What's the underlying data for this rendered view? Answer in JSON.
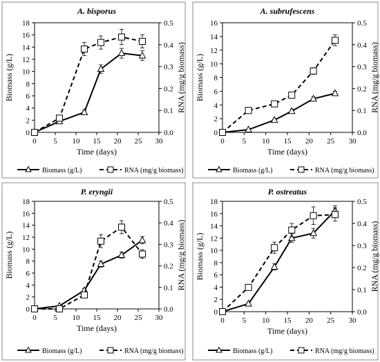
{
  "chart_data": [
    {
      "type": "line",
      "title": "A. bisporus",
      "xlabel": "Time (days)",
      "ylabel": "Biomass (g/L)",
      "y2label": "RNA (mg/g biomass)",
      "xlim": [
        0,
        30
      ],
      "ylim": [
        0,
        18
      ],
      "y2lim": [
        0,
        0.5
      ],
      "x_ticks": [
        "0",
        "5",
        "10",
        "15",
        "20",
        "25",
        "30"
      ],
      "y_ticks": [
        "0",
        "2",
        "4",
        "6",
        "8",
        "10",
        "12",
        "14",
        "16",
        "18"
      ],
      "y2_ticks": [
        "0.0",
        "0.1",
        "0.2",
        "0.3",
        "0.4",
        "0.5"
      ],
      "legend_position": "bottom",
      "series": [
        {
          "name": "Biomass (g/L)",
          "axis": "left",
          "marker": "triangle",
          "line": "solid",
          "x": [
            0,
            6,
            12,
            16,
            21,
            26
          ],
          "values": [
            0,
            1.8,
            3.3,
            10.4,
            13.0,
            12.6
          ],
          "errors": [
            0,
            0.2,
            0.3,
            0.7,
            0.8,
            0.8
          ]
        },
        {
          "name": "RNA (mg/g biomass)",
          "axis": "right",
          "marker": "square",
          "line": "dashed",
          "x": [
            0,
            6,
            12,
            16,
            21,
            26
          ],
          "values": [
            0,
            0.065,
            0.38,
            0.41,
            0.435,
            0.415
          ],
          "errors": [
            0,
            0.005,
            0.03,
            0.03,
            0.035,
            0.03
          ]
        }
      ]
    },
    {
      "type": "line",
      "title": "A. subrufescens",
      "xlabel": "Time (days)",
      "ylabel": "Biomass (g/L)",
      "y2label": "RNA (mg/g biomass)",
      "xlim": [
        0,
        30
      ],
      "ylim": [
        0,
        16
      ],
      "y2lim": [
        0,
        0.5
      ],
      "x_ticks": [
        "0",
        "5",
        "10",
        "15",
        "20",
        "25",
        "30"
      ],
      "y_ticks": [
        "0",
        "2",
        "4",
        "6",
        "8",
        "10",
        "12",
        "14",
        "16"
      ],
      "y2_ticks": [
        "0.0",
        "0.1",
        "0.2",
        "0.3",
        "0.4",
        "0.5"
      ],
      "legend_position": "bottom",
      "series": [
        {
          "name": "Biomass (g/L)",
          "axis": "left",
          "marker": "triangle",
          "line": "solid",
          "x": [
            0,
            6,
            12,
            16,
            21,
            26
          ],
          "values": [
            0,
            0.4,
            1.8,
            3.1,
            4.9,
            5.7
          ],
          "errors": [
            0,
            0.1,
            0.2,
            0.3,
            0.3,
            0.3
          ]
        },
        {
          "name": "RNA (mg/g biomass)",
          "axis": "right",
          "marker": "square",
          "line": "dashed",
          "x": [
            0,
            6,
            12,
            16,
            21,
            26
          ],
          "values": [
            0,
            0.1,
            0.13,
            0.17,
            0.28,
            0.42
          ],
          "errors": [
            0,
            0.008,
            0.008,
            0.01,
            0.015,
            0.025
          ]
        }
      ]
    },
    {
      "type": "line",
      "title": "P. eryngii",
      "xlabel": "Time (days)",
      "ylabel": "Biomass (g/L)",
      "y2label": "RNA (mg/g biomass)",
      "xlim": [
        0,
        30
      ],
      "ylim": [
        0,
        18
      ],
      "y2lim": [
        0,
        0.5
      ],
      "x_ticks": [
        "0",
        "5",
        "10",
        "15",
        "20",
        "25",
        "30"
      ],
      "y_ticks": [
        "0",
        "2",
        "4",
        "6",
        "8",
        "10",
        "12",
        "14",
        "16",
        "18"
      ],
      "y2_ticks": [
        "0.0",
        "0.1",
        "0.2",
        "0.3",
        "0.4",
        "0.5"
      ],
      "legend_position": "bottom",
      "series": [
        {
          "name": "Biomass (g/L)",
          "axis": "left",
          "marker": "triangle",
          "line": "solid",
          "x": [
            0,
            6,
            12,
            16,
            21,
            26
          ],
          "values": [
            0,
            0.5,
            3.1,
            7.5,
            9.0,
            11.5
          ],
          "errors": [
            0,
            0.1,
            0.3,
            0.5,
            0.5,
            0.6
          ]
        },
        {
          "name": "RNA (mg/g biomass)",
          "axis": "right",
          "marker": "square",
          "line": "dashed",
          "x": [
            0,
            6,
            12,
            16,
            21,
            26
          ],
          "values": [
            0,
            0,
            0.065,
            0.315,
            0.38,
            0.255
          ],
          "errors": [
            0,
            0.003,
            0.01,
            0.03,
            0.03,
            0.02
          ]
        }
      ]
    },
    {
      "type": "line",
      "title": "P. ostreatus",
      "xlabel": "Time (days)",
      "ylabel": "Biomass (g/L)",
      "y2label": "RNA (mg/g biomass)",
      "xlim": [
        0,
        30
      ],
      "ylim": [
        0,
        18
      ],
      "y2lim": [
        0,
        0.5
      ],
      "x_ticks": [
        "0",
        "5",
        "10",
        "15",
        "20",
        "25",
        "30"
      ],
      "y_ticks": [
        "0",
        "2",
        "4",
        "6",
        "8",
        "10",
        "12",
        "14",
        "16",
        "18"
      ],
      "y2_ticks": [
        "0.0",
        "0.1",
        "0.2",
        "0.3",
        "0.4",
        "0.5"
      ],
      "legend_position": "bottom",
      "series": [
        {
          "name": "Biomass (g/L)",
          "axis": "left",
          "marker": "triangle",
          "line": "solid",
          "x": [
            0,
            6,
            12,
            16,
            21,
            26
          ],
          "values": [
            0,
            1.3,
            7.3,
            12.0,
            12.8,
            16.5
          ],
          "errors": [
            0,
            0.2,
            0.5,
            0.7,
            0.8,
            0.8
          ]
        },
        {
          "name": "RNA (mg/g biomass)",
          "axis": "right",
          "marker": "square",
          "line": "dashed",
          "x": [
            0,
            6,
            12,
            16,
            21,
            26
          ],
          "values": [
            0,
            0.11,
            0.29,
            0.37,
            0.435,
            0.44
          ],
          "errors": [
            0,
            0.01,
            0.025,
            0.03,
            0.04,
            0.03
          ]
        }
      ]
    }
  ]
}
